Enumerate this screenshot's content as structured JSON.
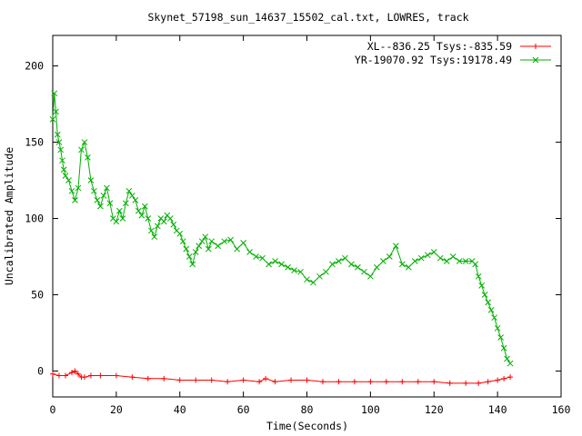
{
  "chart_data": {
    "type": "line",
    "title": "Skynet_57198_sun_14637_15502_cal.txt, LOWRES, track",
    "xlabel": "Time(Seconds)",
    "ylabel": "Uncalibrated Amplitude",
    "xlim": [
      0,
      160
    ],
    "ylim": [
      -17,
      220
    ],
    "xticks": [
      0,
      20,
      40,
      60,
      80,
      100,
      120,
      140,
      160
    ],
    "yticks": [
      0,
      50,
      100,
      150,
      200
    ],
    "grid": false,
    "legend_position": "top-right",
    "series": [
      {
        "name": "XL--836.25 Tsys:-835.59",
        "color": "#ff0000",
        "marker": "plus",
        "x": [
          0,
          2,
          4,
          6,
          7,
          8,
          9,
          10,
          12,
          15,
          20,
          25,
          30,
          35,
          40,
          45,
          50,
          55,
          60,
          65,
          67,
          70,
          75,
          80,
          85,
          90,
          95,
          100,
          105,
          110,
          115,
          120,
          125,
          130,
          134,
          137,
          140,
          142,
          144
        ],
        "y": [
          -2,
          -3,
          -3,
          -1,
          0,
          -2,
          -4,
          -4,
          -3,
          -3,
          -3,
          -4,
          -5,
          -5,
          -6,
          -6,
          -6,
          -7,
          -6,
          -7,
          -5,
          -7,
          -6,
          -6,
          -7,
          -7,
          -7,
          -7,
          -7,
          -7,
          -7,
          -7,
          -8,
          -8,
          -8,
          -7,
          -6,
          -5,
          -4
        ]
      },
      {
        "name": "YR-19070.92 Tsys:19178.49",
        "color": "#00b000",
        "marker": "cross",
        "x": [
          0,
          0.5,
          1,
          1.5,
          2,
          2.5,
          3,
          3.5,
          4,
          5,
          6,
          7,
          8,
          9,
          10,
          11,
          12,
          13,
          14,
          15,
          16,
          17,
          18,
          19,
          20,
          21,
          22,
          23,
          24,
          25,
          26,
          27,
          28,
          29,
          30,
          31,
          32,
          33,
          34,
          35,
          36,
          37,
          38,
          39,
          40,
          41,
          42,
          43,
          44,
          45,
          46,
          47,
          48,
          49,
          50,
          52,
          54,
          56,
          58,
          60,
          62,
          64,
          66,
          68,
          70,
          72,
          74,
          76,
          78,
          80,
          82,
          84,
          86,
          88,
          90,
          92,
          94,
          96,
          98,
          100,
          102,
          104,
          106,
          108,
          110,
          112,
          114,
          116,
          118,
          120,
          122,
          124,
          126,
          128,
          130,
          132,
          133,
          134,
          135,
          136,
          137,
          138,
          139,
          140,
          141,
          142,
          143,
          144
        ],
        "y": [
          165,
          182,
          170,
          155,
          150,
          145,
          138,
          132,
          128,
          125,
          118,
          112,
          120,
          145,
          150,
          140,
          125,
          118,
          112,
          108,
          115,
          120,
          110,
          100,
          98,
          105,
          100,
          110,
          118,
          115,
          112,
          105,
          102,
          108,
          100,
          92,
          88,
          95,
          100,
          98,
          102,
          100,
          96,
          92,
          90,
          85,
          80,
          75,
          70,
          78,
          82,
          85,
          88,
          80,
          85,
          82,
          85,
          86,
          80,
          84,
          78,
          75,
          74,
          70,
          72,
          70,
          68,
          66,
          65,
          60,
          58,
          62,
          65,
          70,
          72,
          74,
          70,
          68,
          65,
          62,
          68,
          72,
          75,
          82,
          70,
          68,
          72,
          74,
          76,
          78,
          74,
          72,
          75,
          72,
          72,
          72,
          70,
          62,
          56,
          50,
          45,
          40,
          35,
          28,
          22,
          15,
          8,
          5
        ]
      }
    ]
  }
}
